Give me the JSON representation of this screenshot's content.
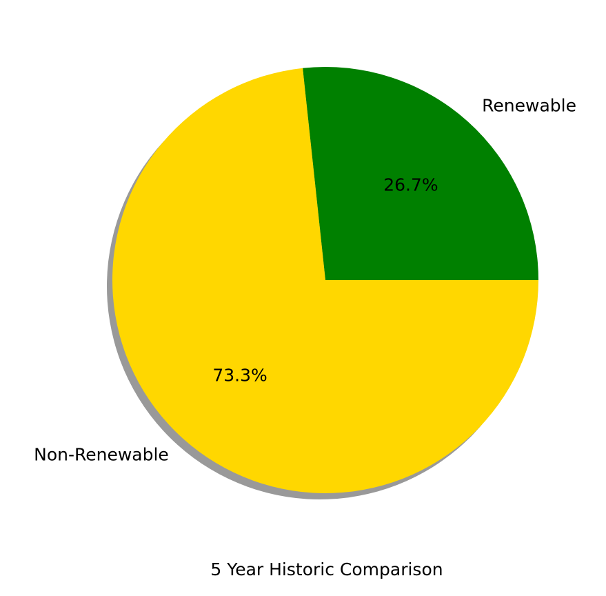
{
  "chart_data": {
    "type": "pie",
    "title": "5 Year Historic Comparison",
    "labels": [
      "Renewable",
      "Non-Renewable"
    ],
    "values": [
      26.7,
      73.3
    ],
    "percent_labels": [
      "26.7%",
      "73.3%"
    ],
    "colors": [
      "#008000",
      "#FFD700"
    ],
    "start_angle_deg": 0,
    "direction": "counterclockwise",
    "shadow": true
  }
}
